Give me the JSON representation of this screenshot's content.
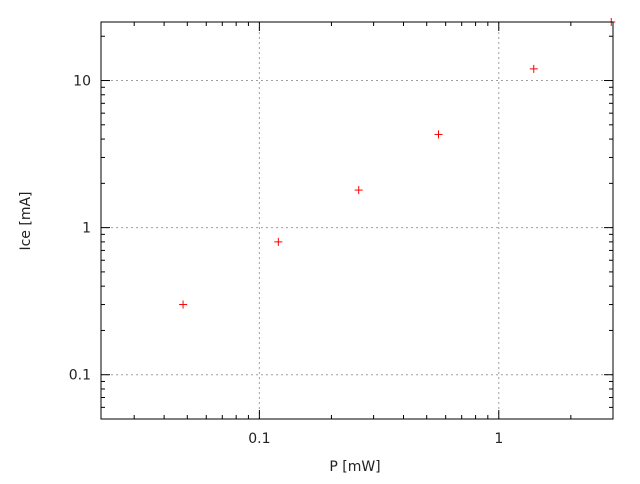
{
  "chart_data": {
    "type": "scatter",
    "title": "",
    "xlabel": "P [mW]",
    "ylabel": "Ice [mA]",
    "xscale": "log",
    "yscale": "log",
    "xlim": [
      0.0218,
      3.0
    ],
    "ylim": [
      0.05,
      25
    ],
    "grid": true,
    "legend": "none",
    "marker": "plus",
    "color": "#ff0000",
    "x_ticks": [
      {
        "value": 0.1,
        "label": "0.1"
      },
      {
        "value": 1,
        "label": "1"
      }
    ],
    "y_ticks": [
      {
        "value": 0.1,
        "label": "0.1"
      },
      {
        "value": 1,
        "label": "1"
      },
      {
        "value": 10,
        "label": "10"
      }
    ],
    "series": [
      {
        "x": [
          0.048,
          0.12,
          0.26,
          0.56,
          1.4,
          2.95
        ],
        "y": [
          0.3,
          0.8,
          1.8,
          4.3,
          12,
          25
        ]
      }
    ]
  }
}
